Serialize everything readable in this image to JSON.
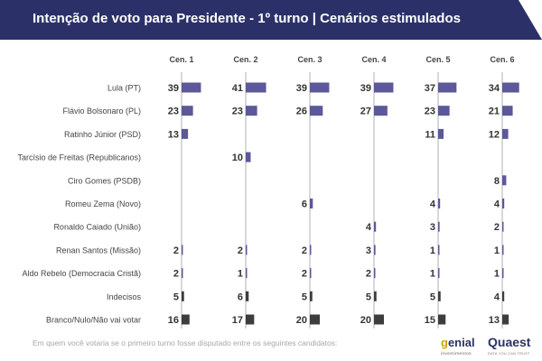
{
  "title": "Intenção de voto para Presidente - 1º turno | Cenários estimulados",
  "footnote": "Em quem você votaria se o primeiro turno fosse disputado entre os seguintes candidatos:",
  "logos": {
    "genial_prefix": "g",
    "genial_rest": "enial",
    "genial_sub": "investimentos",
    "quaest": "Quaest",
    "quaest_sub": "DATA YOU CAN TRUST"
  },
  "colors": {
    "header_bg": "#2b3168",
    "candidate_bar": "#5c5899",
    "other_bar": "#3d3d3d",
    "axis_line": "#b0b0b0",
    "text": "#444444"
  },
  "chart_data": {
    "type": "bar",
    "title": "Intenção de voto para Presidente - 1º turno | Cenários estimulados",
    "scenarios": [
      "Cen. 1",
      "Cen. 2",
      "Cen. 3",
      "Cen. 4",
      "Cen. 5",
      "Cen. 6"
    ],
    "categories": [
      "Lula (PT)",
      "Flávio Bolsonaro (PL)",
      "Ratinho Júnior (PSD)",
      "Tarcísio de Freitas (Republicanos)",
      "Ciro Gomes (PSDB)",
      "Romeu Zema (Novo)",
      "Ronaldo Caiado (União)",
      "Renan Santos (Missão)",
      "Aldo Rebelo (Democracia Cristã)",
      "Indecisos",
      "Branco/Nulo/Não vai votar"
    ],
    "series": [
      {
        "name": "Cen. 1",
        "values": [
          39,
          23,
          13,
          null,
          null,
          null,
          null,
          2,
          2,
          5,
          16
        ]
      },
      {
        "name": "Cen. 2",
        "values": [
          41,
          23,
          null,
          10,
          null,
          null,
          null,
          2,
          1,
          6,
          17
        ]
      },
      {
        "name": "Cen. 3",
        "values": [
          39,
          26,
          null,
          null,
          null,
          6,
          null,
          2,
          2,
          5,
          20
        ]
      },
      {
        "name": "Cen. 4",
        "values": [
          39,
          27,
          null,
          null,
          null,
          null,
          4,
          3,
          2,
          5,
          20
        ]
      },
      {
        "name": "Cen. 5",
        "values": [
          37,
          23,
          11,
          null,
          null,
          4,
          3,
          1,
          1,
          5,
          15
        ]
      },
      {
        "name": "Cen. 6",
        "values": [
          34,
          21,
          12,
          null,
          8,
          4,
          2,
          1,
          1,
          4,
          13
        ]
      }
    ],
    "dark_rows": [
      "Indecisos",
      "Branco/Nulo/Não vai votar"
    ],
    "unit": "%",
    "grid": false,
    "legend": "none"
  }
}
